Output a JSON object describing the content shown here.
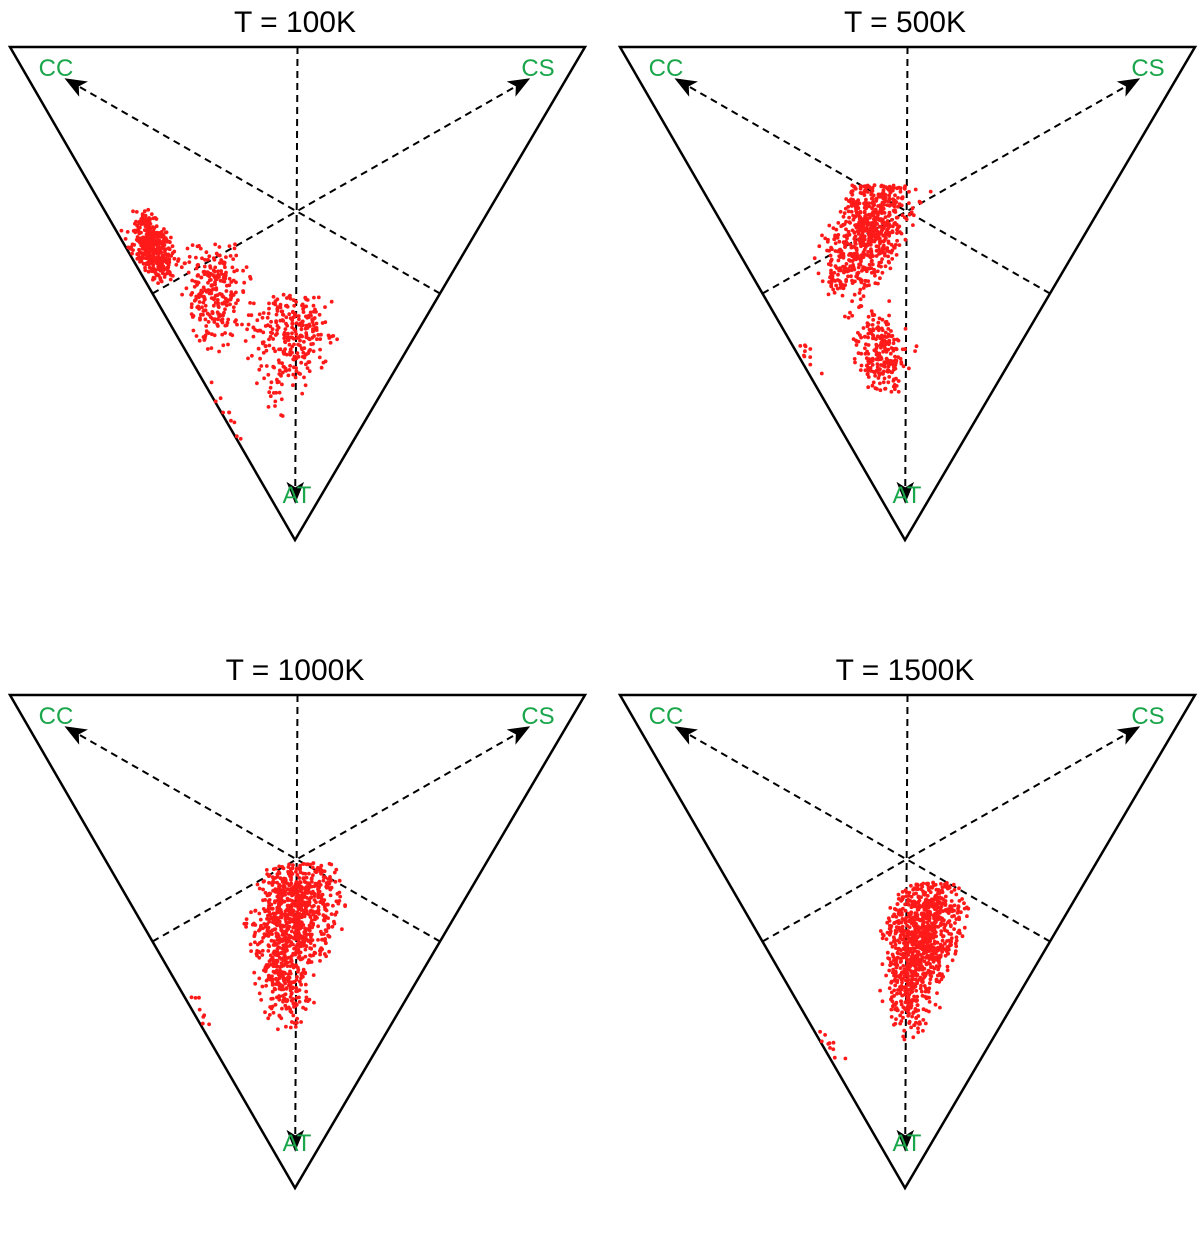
{
  "colors": {
    "vertex_label": "#1aa64a",
    "points": "#ff1a1a",
    "frame": "#000000"
  },
  "chart_data": [
    {
      "type": "scatter",
      "subtype": "ternary",
      "title": "T = 100K",
      "vertices": [
        "CC",
        "CS",
        "AT"
      ],
      "clusters": [
        {
          "cc": [
            0.48,
            0.62
          ],
          "cs": [
            0.0,
            0.09
          ],
          "at": [
            0.33,
            0.48
          ],
          "n": 420
        },
        {
          "cc": [
            0.3,
            0.5
          ],
          "cs": [
            0.02,
            0.2
          ],
          "at": [
            0.4,
            0.62
          ],
          "n": 260
        },
        {
          "cc": [
            0.12,
            0.32
          ],
          "cs": [
            0.08,
            0.32
          ],
          "at": [
            0.5,
            0.8
          ],
          "n": 300
        },
        {
          "cc": [
            0.18,
            0.32
          ],
          "cs": [
            0.0,
            0.02
          ],
          "at": [
            0.66,
            0.82
          ],
          "n": 10
        }
      ]
    },
    {
      "type": "scatter",
      "subtype": "ternary",
      "title": "T = 500K",
      "vertices": [
        "CC",
        "CS",
        "AT"
      ],
      "clusters": [
        {
          "cc": [
            0.3,
            0.46
          ],
          "cs": [
            0.1,
            0.4
          ],
          "at": [
            0.28,
            0.55
          ],
          "n": 700
        },
        {
          "cc": [
            0.16,
            0.3
          ],
          "cs": [
            0.08,
            0.22
          ],
          "at": [
            0.5,
            0.7
          ],
          "n": 220
        },
        {
          "cc": [
            0.3,
            0.42
          ],
          "cs": [
            0.0,
            0.03
          ],
          "at": [
            0.55,
            0.7
          ],
          "n": 10
        }
      ]
    },
    {
      "type": "scatter",
      "subtype": "ternary",
      "title": "T = 1000K",
      "vertices": [
        "CC",
        "CS",
        "AT"
      ],
      "clusters": [
        {
          "cc": [
            0.18,
            0.38
          ],
          "cs": [
            0.15,
            0.4
          ],
          "at": [
            0.34,
            0.6
          ],
          "n": 850
        },
        {
          "cc": [
            0.15,
            0.3
          ],
          "cs": [
            0.12,
            0.24
          ],
          "at": [
            0.5,
            0.68
          ],
          "n": 160
        },
        {
          "cc": [
            0.3,
            0.42
          ],
          "cs": [
            0.0,
            0.03
          ],
          "at": [
            0.55,
            0.7
          ],
          "n": 8
        }
      ]
    },
    {
      "type": "scatter",
      "subtype": "ternary",
      "title": "T = 1500K",
      "vertices": [
        "CC",
        "CS",
        "AT"
      ],
      "clusters": [
        {
          "cc": [
            0.14,
            0.32
          ],
          "cs": [
            0.18,
            0.4
          ],
          "at": [
            0.38,
            0.62
          ],
          "n": 850
        },
        {
          "cc": [
            0.12,
            0.26
          ],
          "cs": [
            0.14,
            0.26
          ],
          "at": [
            0.52,
            0.7
          ],
          "n": 180
        },
        {
          "cc": [
            0.22,
            0.34
          ],
          "cs": [
            0.0,
            0.03
          ],
          "at": [
            0.6,
            0.74
          ],
          "n": 10
        }
      ]
    }
  ]
}
